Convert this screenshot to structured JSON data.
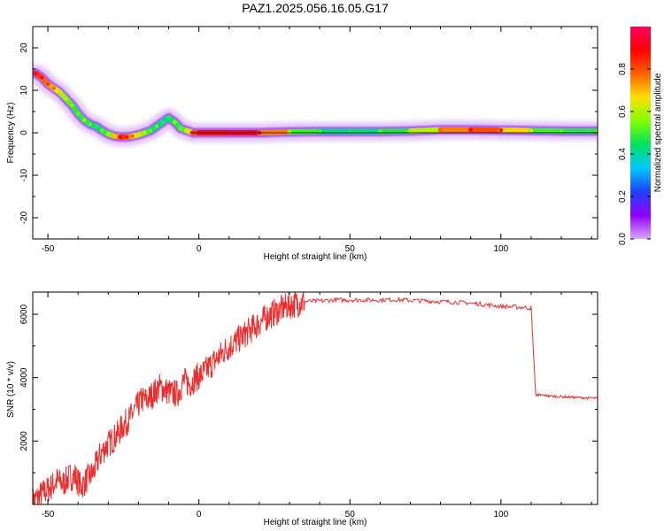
{
  "title": "PAZ1.2025.056.16.05.G17",
  "chart_data": [
    {
      "type": "heatmap",
      "xlabel": "Height of straight line (km)",
      "ylabel": "Frequency (Hz)",
      "xlim": [
        -55,
        132
      ],
      "ylim": [
        -25,
        25
      ],
      "xticks": [
        -50,
        0,
        50,
        100
      ],
      "yticks": [
        20,
        10,
        0,
        -10,
        -20
      ],
      "grid": false,
      "ridge": {
        "x": [
          -54,
          -52,
          -50,
          -48,
          -46,
          -44,
          -42,
          -40,
          -38,
          -36,
          -34,
          -32,
          -30,
          -28,
          -26,
          -24,
          -22,
          -20,
          -18,
          -16,
          -14,
          -12,
          -10,
          -8,
          -6,
          -4,
          -2,
          0,
          10,
          20,
          30,
          40,
          50,
          60,
          70,
          80,
          90,
          100,
          110,
          120,
          132
        ],
        "y": [
          14,
          13,
          11.5,
          10.5,
          9.5,
          8,
          6.5,
          4.5,
          3,
          2,
          1.5,
          0.5,
          -0.3,
          -0.8,
          -1,
          -1,
          -0.8,
          -0.5,
          0,
          0.5,
          1.5,
          2.5,
          3.5,
          2.5,
          1,
          0.5,
          0,
          0,
          0,
          0,
          0.2,
          0.3,
          0.3,
          0.3,
          0.4,
          0.7,
          0.7,
          0.6,
          0.5,
          0.4,
          0.4
        ],
        "amplitude": [
          0.85,
          0.8,
          0.75,
          0.7,
          0.6,
          0.55,
          0.5,
          0.45,
          0.5,
          0.45,
          0.4,
          0.45,
          0.5,
          0.6,
          0.85,
          0.8,
          0.7,
          0.6,
          0.55,
          0.45,
          0.45,
          0.4,
          0.4,
          0.5,
          0.45,
          0.55,
          0.75,
          0.85,
          0.9,
          0.95,
          0.55,
          0.45,
          0.4,
          0.45,
          0.5,
          0.7,
          0.8,
          0.8,
          0.55,
          0.45,
          0.5
        ]
      },
      "colorbar": {
        "label": "Normalized spectral amplitude",
        "range": [
          0,
          1
        ],
        "ticks": [
          0.0,
          0.2,
          0.4,
          0.6,
          0.8
        ],
        "colormap": [
          "#d8a8f8",
          "#9000ff",
          "#2040ff",
          "#00c8ff",
          "#00e060",
          "#80ff00",
          "#ffe000",
          "#ff6000",
          "#ff0000",
          "#ff0060"
        ]
      }
    },
    {
      "type": "line",
      "xlabel": "Height of straight line (km)",
      "ylabel": "SNR (10 * v/v)",
      "xlim": [
        -55,
        132
      ],
      "ylim": [
        0,
        6700
      ],
      "xticks": [
        -50,
        0,
        50,
        100
      ],
      "yticks": [
        2000,
        4000,
        6000
      ],
      "grid": false,
      "series": [
        {
          "color": "#e83030",
          "x": [
            -55,
            -53,
            -51,
            -49,
            -47,
            -45,
            -43,
            -41,
            -39,
            -37,
            -35,
            -33,
            -31,
            -29,
            -27,
            -25,
            -23,
            -21,
            -19,
            -17,
            -15,
            -13,
            -11,
            -9,
            -7,
            -5,
            -3,
            -1,
            1,
            3,
            5,
            7,
            9,
            11,
            13,
            15,
            17,
            19,
            21,
            23,
            25,
            27,
            29,
            31,
            33,
            35,
            40,
            45,
            50,
            55,
            60,
            65,
            70,
            75,
            80,
            85,
            90,
            95,
            100,
            105,
            110,
            111.5,
            113,
            116,
            120,
            124,
            128,
            132
          ],
          "y": [
            100,
            250,
            400,
            550,
            750,
            650,
            850,
            900,
            550,
            800,
            1000,
            1500,
            1800,
            2000,
            2200,
            2500,
            2700,
            3000,
            3300,
            3300,
            3500,
            3700,
            3600,
            3500,
            3500,
            3900,
            3800,
            4000,
            4100,
            4300,
            4500,
            4700,
            4900,
            5050,
            5200,
            5350,
            5500,
            5650,
            5800,
            5950,
            6050,
            6150,
            6250,
            6300,
            6350,
            6400,
            6420,
            6450,
            6450,
            6450,
            6450,
            6460,
            6440,
            6420,
            6400,
            6380,
            6350,
            6300,
            6250,
            6230,
            6200,
            3450,
            3450,
            3420,
            3400,
            3380,
            3360,
            3350
          ]
        }
      ]
    }
  ]
}
